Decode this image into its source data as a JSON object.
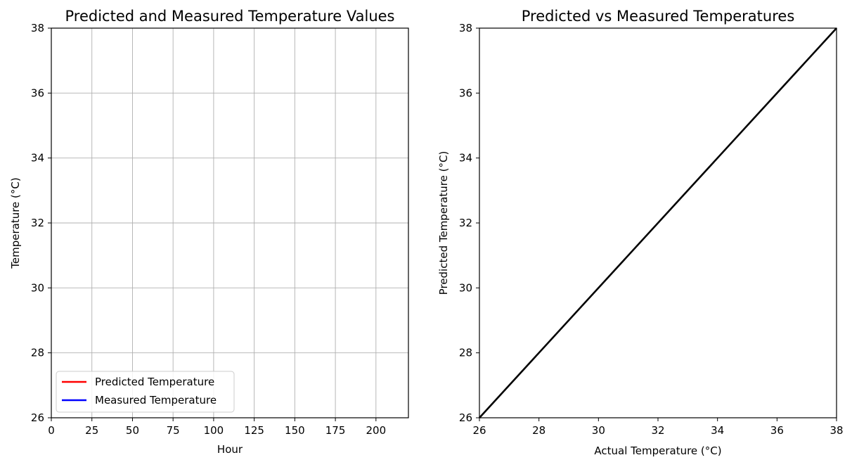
{
  "chart_data": [
    {
      "type": "line",
      "title": "Predicted and Measured Temperature Values",
      "xlabel": "Hour",
      "ylabel": "Temperature (°C)",
      "xlim": [
        0,
        220
      ],
      "ylim": [
        26,
        38
      ],
      "xticks": [
        0,
        25,
        50,
        75,
        100,
        125,
        150,
        175,
        200
      ],
      "yticks": [
        26,
        28,
        30,
        32,
        34,
        36,
        38
      ],
      "grid": true,
      "legend_position": "lower-left",
      "series": [
        {
          "name": "Predicted Temperature",
          "color": "#ff0000",
          "x": [],
          "y": []
        },
        {
          "name": "Measured Temperature",
          "color": "#0000ff",
          "x": [],
          "y": []
        }
      ]
    },
    {
      "type": "scatter",
      "title": "Predicted vs Measured Temperatures",
      "xlabel": "Actual Temperature (°C)",
      "ylabel": "Predicted Temperature (°C)",
      "xlim": [
        26,
        38
      ],
      "ylim": [
        26,
        38
      ],
      "xticks": [
        26,
        28,
        30,
        32,
        34,
        36,
        38
      ],
      "yticks": [
        26,
        28,
        30,
        32,
        34,
        36,
        38
      ],
      "grid": false,
      "points": [],
      "reference_line": {
        "x": [
          26,
          38
        ],
        "y": [
          26,
          38
        ],
        "color": "#000000"
      }
    }
  ]
}
